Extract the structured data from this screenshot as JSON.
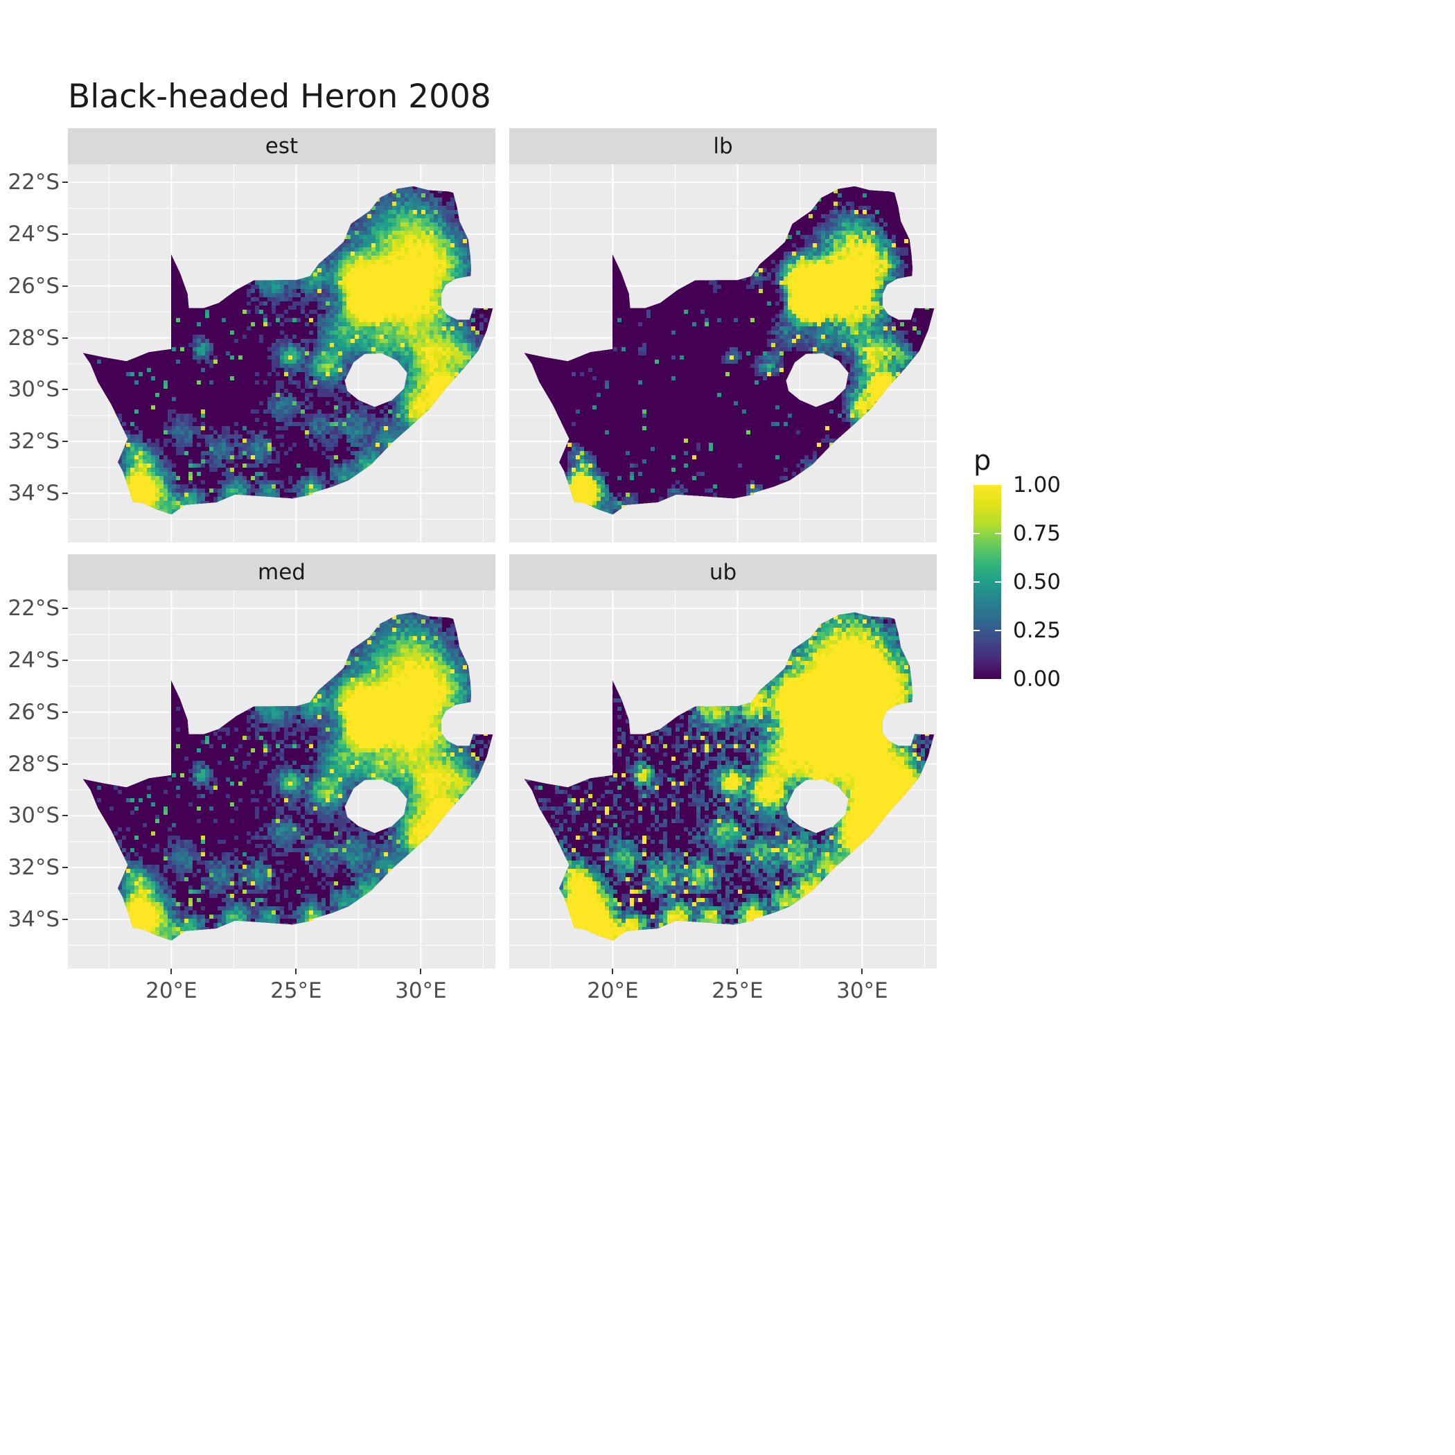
{
  "title": "Black-headed Heron 2008",
  "facets": [
    {
      "label": "est"
    },
    {
      "label": "lb"
    },
    {
      "label": "med"
    },
    {
      "label": "ub"
    }
  ],
  "axes": {
    "x_ticks": [
      {
        "value": 20,
        "label": "20°E"
      },
      {
        "value": 25,
        "label": "25°E"
      },
      {
        "value": 30,
        "label": "30°E"
      }
    ],
    "y_ticks": [
      {
        "value": -22,
        "label": "22°S"
      },
      {
        "value": -24,
        "label": "24°S"
      },
      {
        "value": -26,
        "label": "26°S"
      },
      {
        "value": -28,
        "label": "28°S"
      },
      {
        "value": -30,
        "label": "30°S"
      },
      {
        "value": -32,
        "label": "32°S"
      },
      {
        "value": -34,
        "label": "34°S"
      }
    ],
    "x_minor": [
      17.5,
      22.5,
      27.5,
      32.5
    ],
    "y_minor": [
      -23,
      -25,
      -27,
      -29,
      -31,
      -33,
      -35
    ]
  },
  "legend": {
    "title": "p",
    "ticks": [
      {
        "value": 1.0,
        "label": "1.00"
      },
      {
        "value": 0.75,
        "label": "0.75"
      },
      {
        "value": 0.5,
        "label": "0.50"
      },
      {
        "value": 0.25,
        "label": "0.25"
      },
      {
        "value": 0.0,
        "label": "0.00"
      }
    ]
  },
  "colors": {
    "background": "#FFFFFF",
    "panel_bg": "#EBEBEB",
    "strip_bg": "#D9D9D9",
    "grid_major": "#FFFFFF",
    "grid_minor": "#FFFFFF",
    "axis_text": "#4D4D4D",
    "tick_mark": "#333333",
    "title_text": "#1A1A1A",
    "map_base": "#440154",
    "viridis": [
      [
        0.0,
        "#440154"
      ],
      [
        0.1,
        "#482878"
      ],
      [
        0.2,
        "#3E4A89"
      ],
      [
        0.3,
        "#31688E"
      ],
      [
        0.4,
        "#26828E"
      ],
      [
        0.5,
        "#1F9E89"
      ],
      [
        0.6,
        "#35B779"
      ],
      [
        0.7,
        "#6DCD59"
      ],
      [
        0.8,
        "#B4DE2C"
      ],
      [
        0.9,
        "#DFE318"
      ],
      [
        1.0,
        "#FDE725"
      ]
    ]
  },
  "map": {
    "region": "South Africa",
    "outline": [
      [
        16.45,
        -28.58
      ],
      [
        17.3,
        -28.75
      ],
      [
        18.2,
        -28.9
      ],
      [
        19.1,
        -28.55
      ],
      [
        19.99,
        -28.43
      ],
      [
        19.99,
        -24.77
      ],
      [
        20.35,
        -25.5
      ],
      [
        20.65,
        -26.3
      ],
      [
        20.7,
        -26.85
      ],
      [
        21.3,
        -26.85
      ],
      [
        21.9,
        -26.65
      ],
      [
        22.6,
        -26.15
      ],
      [
        23.3,
        -25.78
      ],
      [
        24.2,
        -25.77
      ],
      [
        25.0,
        -25.77
      ],
      [
        25.55,
        -25.62
      ],
      [
        25.9,
        -25.15
      ],
      [
        26.5,
        -24.65
      ],
      [
        26.9,
        -24.3
      ],
      [
        27.2,
        -23.6
      ],
      [
        27.95,
        -23.1
      ],
      [
        28.35,
        -22.6
      ],
      [
        29.05,
        -22.25
      ],
      [
        29.7,
        -22.15
      ],
      [
        30.3,
        -22.3
      ],
      [
        31.1,
        -22.35
      ],
      [
        31.3,
        -22.4
      ],
      [
        31.45,
        -22.95
      ],
      [
        31.55,
        -23.5
      ],
      [
        31.9,
        -24.2
      ],
      [
        31.98,
        -24.8
      ],
      [
        32.02,
        -25.3
      ],
      [
        32.0,
        -25.61
      ],
      [
        31.4,
        -25.72
      ],
      [
        31.0,
        -25.95
      ],
      [
        30.82,
        -26.3
      ],
      [
        30.82,
        -26.8
      ],
      [
        31.05,
        -27.1
      ],
      [
        31.45,
        -27.3
      ],
      [
        31.95,
        -27.3
      ],
      [
        32.1,
        -26.85
      ],
      [
        32.45,
        -26.86
      ],
      [
        32.89,
        -26.86
      ],
      [
        32.65,
        -27.7
      ],
      [
        32.3,
        -28.5
      ],
      [
        31.75,
        -29.15
      ],
      [
        31.05,
        -29.9
      ],
      [
        30.35,
        -30.75
      ],
      [
        29.55,
        -31.45
      ],
      [
        28.85,
        -32.05
      ],
      [
        28.0,
        -32.9
      ],
      [
        27.1,
        -33.5
      ],
      [
        26.45,
        -33.75
      ],
      [
        25.65,
        -33.98
      ],
      [
        25.65,
        -34.05
      ],
      [
        24.85,
        -34.2
      ],
      [
        23.4,
        -34.1
      ],
      [
        22.55,
        -34.05
      ],
      [
        21.8,
        -34.35
      ],
      [
        20.55,
        -34.45
      ],
      [
        20.0,
        -34.82
      ],
      [
        19.35,
        -34.6
      ],
      [
        18.85,
        -34.38
      ],
      [
        18.45,
        -34.33
      ],
      [
        18.32,
        -33.92
      ],
      [
        18.05,
        -33.15
      ],
      [
        17.85,
        -32.8
      ],
      [
        18.25,
        -31.9
      ],
      [
        17.6,
        -30.6
      ],
      [
        17.05,
        -29.7
      ],
      [
        16.75,
        -29.0
      ]
    ],
    "lesotho_hole": [
      [
        26.95,
        -29.65
      ],
      [
        27.3,
        -28.95
      ],
      [
        27.75,
        -28.62
      ],
      [
        28.45,
        -28.6
      ],
      [
        29.05,
        -28.88
      ],
      [
        29.45,
        -29.35
      ],
      [
        29.33,
        -29.95
      ],
      [
        28.85,
        -30.4
      ],
      [
        28.15,
        -30.67
      ],
      [
        27.5,
        -30.4
      ],
      [
        27.05,
        -30.05
      ]
    ],
    "facet_params": {
      "est": {
        "gain": 1.0,
        "gamma": 1.0
      },
      "lb": {
        "gain": 1.0,
        "gamma": 2.4
      },
      "med": {
        "gain": 1.05,
        "gamma": 0.95
      },
      "ub": {
        "gain": 1.75,
        "gamma": 0.9
      }
    },
    "hotspots": [
      [
        28.05,
        -26.15,
        0.55,
        1.25
      ],
      [
        27.75,
        -26.7,
        0.5,
        0.85
      ],
      [
        28.5,
        -25.5,
        1.1,
        0.55
      ],
      [
        28.9,
        -26.5,
        3.2,
        0.16
      ],
      [
        29.4,
        -23.6,
        1.0,
        0.38
      ],
      [
        30.2,
        -24.6,
        0.9,
        0.4
      ],
      [
        31.0,
        -25.3,
        0.7,
        0.45
      ],
      [
        26.9,
        -27.9,
        0.6,
        0.45
      ],
      [
        26.2,
        -29.12,
        0.45,
        0.6
      ],
      [
        24.75,
        -28.72,
        0.35,
        0.55
      ],
      [
        21.25,
        -28.45,
        0.3,
        0.45
      ],
      [
        30.4,
        -29.6,
        0.8,
        0.6
      ],
      [
        31.0,
        -29.85,
        0.35,
        0.8
      ],
      [
        29.8,
        -30.6,
        0.5,
        0.5
      ],
      [
        27.9,
        -32.9,
        0.4,
        0.55
      ],
      [
        25.62,
        -33.9,
        0.4,
        0.6
      ],
      [
        22.55,
        -33.95,
        0.4,
        0.6
      ],
      [
        19.45,
        -33.65,
        0.45,
        0.5
      ],
      [
        18.55,
        -33.85,
        0.5,
        1.15
      ],
      [
        18.8,
        -34.4,
        0.4,
        0.8
      ],
      [
        19.9,
        -34.6,
        0.45,
        0.6
      ],
      [
        20.9,
        -34.3,
        0.35,
        0.5
      ],
      [
        23.9,
        -34.0,
        0.35,
        0.45
      ],
      [
        26.9,
        -33.3,
        0.35,
        0.45
      ],
      [
        28.8,
        -31.9,
        0.45,
        0.4
      ],
      [
        30.9,
        -30.6,
        0.4,
        0.5
      ],
      [
        31.9,
        -28.9,
        0.4,
        0.45
      ],
      [
        24.0,
        -25.85,
        0.5,
        0.4
      ],
      [
        25.6,
        -25.7,
        0.4,
        0.4
      ],
      [
        27.1,
        -25.5,
        0.5,
        0.45
      ],
      [
        29.2,
        -26.8,
        0.8,
        0.5
      ],
      [
        29.9,
        -27.8,
        0.6,
        0.4
      ],
      [
        30.5,
        -28.6,
        0.5,
        0.45
      ],
      [
        22.0,
        -32.3,
        0.5,
        0.35
      ],
      [
        23.6,
        -32.3,
        0.45,
        0.35
      ],
      [
        24.5,
        -30.7,
        0.5,
        0.3
      ],
      [
        20.5,
        -31.6,
        0.45,
        0.3
      ],
      [
        28.4,
        -28.4,
        0.5,
        0.45
      ],
      [
        29.7,
        -25.9,
        0.6,
        0.5
      ],
      [
        30.8,
        -26.9,
        0.5,
        0.45
      ],
      [
        31.4,
        -28.3,
        0.5,
        0.45
      ],
      [
        30.0,
        -31.2,
        0.4,
        0.45
      ],
      [
        27.4,
        -31.5,
        0.45,
        0.35
      ],
      [
        26.0,
        -31.5,
        0.4,
        0.3
      ],
      [
        18.9,
        -32.8,
        0.45,
        0.5
      ],
      [
        18.4,
        -32.3,
        0.4,
        0.4
      ],
      [
        17.6,
        -31.5,
        0.35,
        0.3
      ]
    ]
  }
}
